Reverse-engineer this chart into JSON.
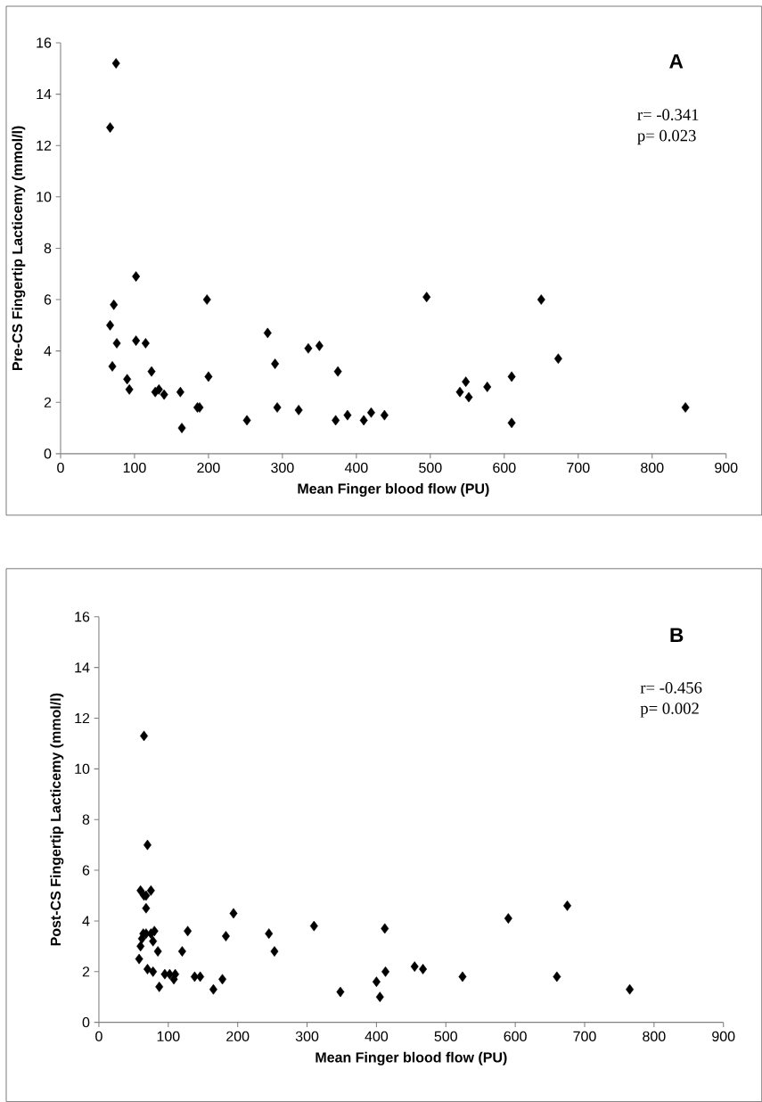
{
  "chart_data": [
    {
      "type": "scatter",
      "title": "A",
      "xlabel": "Mean Finger blood flow (PU)",
      "ylabel": "Pre-CS Fingertip Lacticemy (mmol/l)",
      "annotations": [
        "r= -0.341",
        "p= 0.023"
      ],
      "color": "#000000",
      "marker": "diamond",
      "xlim": [
        0,
        900
      ],
      "xticks": [
        0,
        100,
        200,
        300,
        400,
        500,
        600,
        700,
        800,
        900
      ],
      "ylim": [
        0,
        16
      ],
      "yticks": [
        0,
        2,
        4,
        6,
        8,
        10,
        12,
        14,
        16
      ],
      "x": [
        67,
        75,
        67,
        72,
        70,
        76,
        90,
        93,
        102,
        102,
        115,
        123,
        128,
        133,
        140,
        162,
        164,
        185,
        188,
        198,
        200,
        252,
        280,
        290,
        293,
        322,
        335,
        350,
        372,
        375,
        388,
        410,
        420,
        438,
        495,
        540,
        548,
        552,
        577,
        610,
        610,
        650,
        673,
        845
      ],
      "values": [
        12.7,
        15.2,
        5.0,
        5.8,
        3.4,
        4.3,
        2.9,
        2.5,
        6.9,
        4.4,
        4.3,
        3.2,
        2.4,
        2.5,
        2.3,
        2.4,
        1.0,
        1.8,
        1.8,
        6.0,
        3.0,
        1.3,
        4.7,
        3.5,
        1.8,
        1.7,
        4.1,
        4.2,
        1.3,
        3.2,
        1.5,
        1.3,
        1.6,
        1.5,
        6.1,
        2.4,
        2.8,
        2.2,
        2.6,
        3.0,
        1.2,
        6.0,
        3.7,
        1.8
      ]
    },
    {
      "type": "scatter",
      "title": "B",
      "xlabel": "Mean Finger blood flow (PU)",
      "ylabel": "Post-CS Fingertip Lacticemy (mmol/l)",
      "annotations": [
        "r= -0.456",
        "p= 0.002"
      ],
      "color": "#000000",
      "marker": "diamond",
      "xlim": [
        0,
        900
      ],
      "xticks": [
        0,
        100,
        200,
        300,
        400,
        500,
        600,
        700,
        800,
        900
      ],
      "ylim": [
        0,
        16
      ],
      "yticks": [
        0,
        2,
        4,
        6,
        8,
        10,
        12,
        14,
        16
      ],
      "x": [
        60,
        65,
        68,
        75,
        68,
        60,
        62,
        64,
        68,
        75,
        80,
        78,
        85,
        58,
        70,
        78,
        87,
        95,
        102,
        108,
        110,
        65,
        70,
        120,
        128,
        138,
        146,
        165,
        178,
        183,
        194,
        245,
        253,
        310,
        348,
        400,
        405,
        412,
        413,
        455,
        467,
        524,
        590,
        660,
        675,
        765
      ],
      "values": [
        5.2,
        5.0,
        5.0,
        5.2,
        4.5,
        3.0,
        3.3,
        3.5,
        3.5,
        3.5,
        3.6,
        3.2,
        2.8,
        2.5,
        2.1,
        2.0,
        1.4,
        1.9,
        1.9,
        1.7,
        1.9,
        11.3,
        7.0,
        2.8,
        3.6,
        1.8,
        1.8,
        1.3,
        1.7,
        3.4,
        4.3,
        3.5,
        2.8,
        3.8,
        1.2,
        1.6,
        1.0,
        3.7,
        2.0,
        2.2,
        2.1,
        1.8,
        4.1,
        1.8,
        4.6,
        1.3
      ]
    }
  ]
}
